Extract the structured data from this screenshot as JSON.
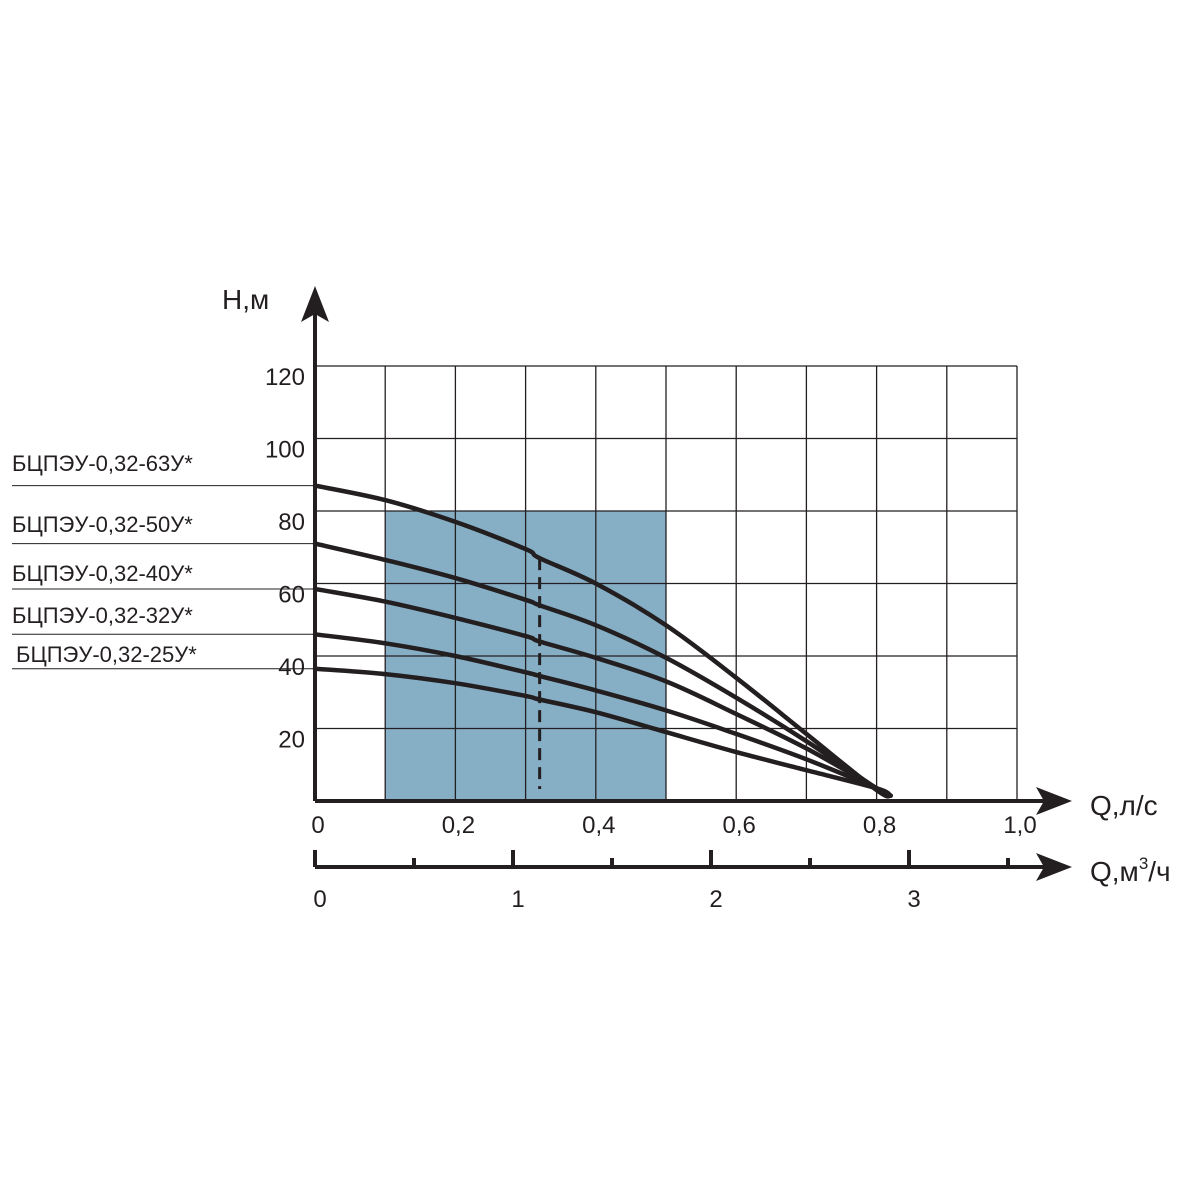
{
  "chart_data": {
    "type": "line",
    "ylabel": "Н,м",
    "xlabel": "Q,л/с",
    "xlabel2": {
      "base": "Q,м",
      "sup": "3",
      "tail": "/ч"
    },
    "xlim": [
      0,
      1.0
    ],
    "ylim": [
      0,
      120
    ],
    "y_ticks": [
      "120",
      "100",
      "80",
      "60",
      "40",
      "20"
    ],
    "x_ticks": [
      "0",
      "0,2",
      "0,4",
      "0,6",
      "0,8",
      "1,0"
    ],
    "x2_ticks": [
      "0",
      "1",
      "2",
      "3"
    ],
    "x2_tick_values": [
      0,
      1,
      2,
      3
    ],
    "x2_minor_step": 0.5,
    "grid": true,
    "operating_region": {
      "q_min": 0.1,
      "q_max": 0.5,
      "h_min": 0,
      "h_max": 80,
      "color": "#86afc6"
    },
    "nominal_flow": 0.32,
    "series": [
      {
        "name": "БЦПЭУ-0,32-63У*",
        "x": [
          0,
          0.1,
          0.2,
          0.3,
          0.32,
          0.4,
          0.5,
          0.6,
          0.7,
          0.8,
          0.82
        ],
        "y": [
          87,
          83,
          77,
          69.5,
          67,
          60,
          48.5,
          34,
          18.5,
          3,
          1.5
        ]
      },
      {
        "name": "БЦПЭУ-0,32-50У*",
        "x": [
          0,
          0.1,
          0.2,
          0.3,
          0.32,
          0.4,
          0.5,
          0.6,
          0.7,
          0.8,
          0.82
        ],
        "y": [
          71,
          66.5,
          61.5,
          55.5,
          54,
          48.5,
          39.5,
          28.5,
          16.5,
          3.5,
          1.5
        ]
      },
      {
        "name": "БЦПЭУ-0,32-40У*",
        "x": [
          0,
          0.1,
          0.2,
          0.3,
          0.32,
          0.4,
          0.5,
          0.6,
          0.7,
          0.8,
          0.82
        ],
        "y": [
          58.5,
          55,
          50.5,
          45.5,
          44,
          39.5,
          33,
          24,
          14.5,
          3.5,
          1.5
        ]
      },
      {
        "name": "БЦПЭУ-0,32-32У*",
        "x": [
          0,
          0.1,
          0.2,
          0.3,
          0.32,
          0.4,
          0.5,
          0.6,
          0.7,
          0.8,
          0.82
        ],
        "y": [
          46,
          43.5,
          40,
          35.5,
          34.5,
          30.5,
          25,
          18.5,
          11.5,
          3.5,
          1.5
        ]
      },
      {
        "name": "БЦПЭУ-0,32-25У*",
        "x": [
          0,
          0.1,
          0.2,
          0.3,
          0.32,
          0.4,
          0.5,
          0.6,
          0.7,
          0.8,
          0.82
        ],
        "y": [
          36.5,
          35,
          32.5,
          29,
          28,
          24.5,
          19,
          13.5,
          8.5,
          3.5,
          1.5
        ]
      }
    ]
  }
}
